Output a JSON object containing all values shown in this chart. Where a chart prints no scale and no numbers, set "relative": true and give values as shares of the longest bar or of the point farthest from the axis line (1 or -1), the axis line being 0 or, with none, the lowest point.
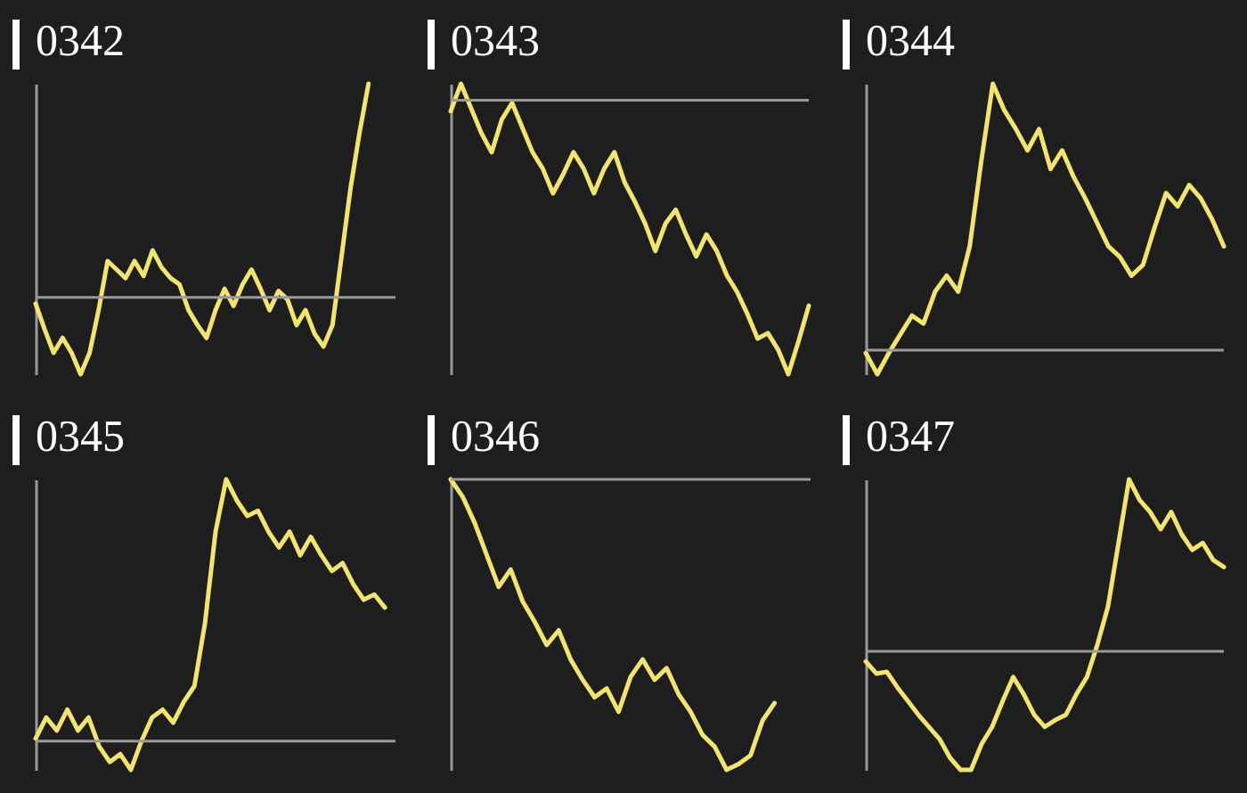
{
  "chart_data": [
    {
      "type": "line",
      "title": "0342",
      "relative": true,
      "color": "#f2e46c",
      "categories": [
        null,
        null,
        null,
        null,
        null,
        null,
        null,
        null,
        null,
        null,
        null,
        null,
        null,
        null,
        null,
        null,
        null,
        null,
        null,
        null,
        null,
        null,
        null,
        null,
        null,
        null,
        null,
        null,
        null,
        null,
        null,
        null,
        null,
        null,
        null,
        null,
        null,
        null,
        null,
        null,
        null
      ],
      "values": [
        -0.03,
        -0.15,
        -0.26,
        -0.19,
        -0.26,
        -0.36,
        -0.26,
        -0.06,
        0.17,
        0.13,
        0.09,
        0.17,
        0.1,
        0.22,
        0.14,
        0.09,
        0.06,
        -0.06,
        -0.13,
        -0.19,
        -0.06,
        0.04,
        -0.04,
        0.06,
        0.13,
        0.04,
        -0.06,
        0.03,
        -0.01,
        -0.13,
        -0.06,
        -0.17,
        -0.23,
        -0.13,
        0.19,
        0.51,
        0.77,
        1,
        null,
        null,
        null
      ]
    },
    {
      "type": "line",
      "title": "0343",
      "relative": true,
      "color": "#f2e46c",
      "categories": [
        null,
        null,
        null,
        null,
        null,
        null,
        null,
        null,
        null,
        null,
        null,
        null,
        null,
        null,
        null,
        null,
        null,
        null,
        null,
        null,
        null,
        null,
        null,
        null,
        null,
        null,
        null,
        null,
        null,
        null,
        null,
        null,
        null,
        null,
        null,
        null
      ],
      "values": [
        -0.04,
        0.06,
        -0.03,
        -0.12,
        -0.19,
        -0.07,
        -0.01,
        -0.1,
        -0.19,
        -0.25,
        -0.34,
        -0.27,
        -0.19,
        -0.25,
        -0.34,
        -0.25,
        -0.19,
        -0.3,
        -0.37,
        -0.45,
        -0.55,
        -0.45,
        -0.4,
        -0.49,
        -0.57,
        -0.49,
        -0.55,
        -0.64,
        -0.7,
        -0.78,
        -0.87,
        -0.85,
        -0.91,
        -1,
        -0.88,
        -0.75
      ]
    },
    {
      "type": "line",
      "title": "0344",
      "relative": true,
      "color": "#f2e46c",
      "categories": [
        null,
        null,
        null,
        null,
        null,
        null,
        null,
        null,
        null,
        null,
        null,
        null,
        null,
        null,
        null,
        null,
        null,
        null,
        null,
        null,
        null,
        null,
        null,
        null,
        null,
        null,
        null,
        null,
        null,
        null,
        null,
        null
      ],
      "values": [
        -0.01,
        -0.09,
        -0.01,
        0.06,
        0.13,
        0.1,
        0.22,
        0.28,
        0.22,
        0.39,
        0.71,
        1,
        0.9,
        0.83,
        0.75,
        0.83,
        0.68,
        0.75,
        0.65,
        0.57,
        0.48,
        0.39,
        0.35,
        0.28,
        0.32,
        0.46,
        0.59,
        0.54,
        0.62,
        0.57,
        0.49,
        0.39
      ]
    },
    {
      "type": "line",
      "title": "0345",
      "relative": true,
      "color": "#f2e46c",
      "categories": [
        null,
        null,
        null,
        null,
        null,
        null,
        null,
        null,
        null,
        null,
        null,
        null,
        null,
        null,
        null,
        null,
        null,
        null,
        null,
        null,
        null,
        null,
        null,
        null,
        null,
        null,
        null,
        null,
        null,
        null,
        null,
        null,
        null,
        null,
        null
      ],
      "values": [
        0.01,
        0.09,
        0.04,
        0.12,
        0.04,
        0.09,
        -0.02,
        -0.08,
        -0.05,
        -0.11,
        0,
        0.09,
        0.12,
        0.07,
        0.15,
        0.21,
        0.45,
        0.8,
        1,
        0.92,
        0.86,
        0.88,
        0.8,
        0.74,
        0.8,
        0.71,
        0.78,
        0.71,
        0.65,
        0.68,
        0.6,
        0.54,
        0.56,
        0.51,
        null
      ]
    },
    {
      "type": "line",
      "title": "0346",
      "relative": true,
      "color": "#f2e46c",
      "categories": [
        null,
        null,
        null,
        null,
        null,
        null,
        null,
        null,
        null,
        null,
        null,
        null,
        null,
        null,
        null,
        null,
        null,
        null,
        null,
        null,
        null,
        null,
        null,
        null,
        null,
        null,
        null,
        null,
        null,
        null,
        null
      ],
      "values": [
        0,
        -0.06,
        -0.15,
        -0.26,
        -0.37,
        -0.31,
        -0.42,
        -0.49,
        -0.57,
        -0.52,
        -0.62,
        -0.69,
        -0.75,
        -0.72,
        -0.8,
        -0.68,
        -0.62,
        -0.69,
        -0.65,
        -0.74,
        -0.8,
        -0.88,
        -0.92,
        -1,
        -0.98,
        -0.95,
        -0.83,
        -0.77,
        null,
        null,
        null
      ]
    },
    {
      "type": "line",
      "title": "0347",
      "relative": true,
      "color": "#f2e46c",
      "categories": [
        null,
        null,
        null,
        null,
        null,
        null,
        null,
        null,
        null,
        null,
        null,
        null,
        null,
        null,
        null,
        null,
        null,
        null,
        null,
        null,
        null,
        null,
        null,
        null,
        null,
        null,
        null,
        null,
        null,
        null,
        null,
        null,
        null,
        null,
        null
      ],
      "values": [
        -0.06,
        -0.13,
        -0.12,
        -0.21,
        -0.29,
        -0.37,
        -0.44,
        -0.51,
        -0.62,
        -0.69,
        -0.69,
        -0.54,
        -0.44,
        -0.29,
        -0.15,
        -0.25,
        -0.37,
        -0.44,
        -0.4,
        -0.37,
        -0.25,
        -0.15,
        0.04,
        0.26,
        0.63,
        1,
        0.88,
        0.81,
        0.71,
        0.81,
        0.68,
        0.59,
        0.63,
        0.53,
        0.49
      ]
    }
  ]
}
